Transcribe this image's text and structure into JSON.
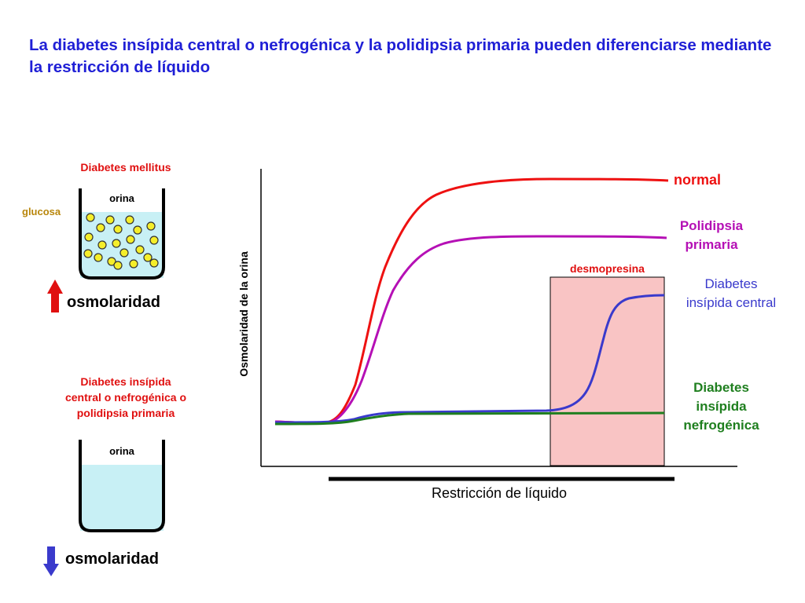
{
  "title": "La diabetes insípida central o nefrogénica y la polidipsia primaria pueden diferenciarse mediante la restricción de líquido",
  "left_top": {
    "condition": "Diabetes mellitus",
    "beaker_label": "orina",
    "solute_label": "glucosa",
    "osmolarity_label": "osmolaridad",
    "osmolarity_direction": "up"
  },
  "left_bottom": {
    "condition_lines": [
      "Diabetes insípida",
      "central o nefrogénica o",
      "polidipsia primaria"
    ],
    "beaker_label": "orina",
    "osmolarity_label": "osmolaridad",
    "osmolarity_direction": "down"
  },
  "graph": {
    "y_axis_label": "Osmolaridad de la orina",
    "x_axis_label": "Restricción de líquido",
    "intervention_label": "desmopresina",
    "curves": {
      "normal": [
        "normal"
      ],
      "primary_polydipsia": [
        "Polidipsia",
        "primaria"
      ],
      "central_di": [
        "Diabetes",
        "insípida central"
      ],
      "nephrogenic_di": [
        "Diabetes",
        "insípida",
        "nefrogénica"
      ]
    }
  },
  "colors": {
    "title": "#1f1fd6",
    "condition_label": "#e01010",
    "glucose_label": "#b8860b",
    "normal": "#ee1111",
    "primary_polydipsia": "#b510b5",
    "central_di": "#3a3acc",
    "nephrogenic_di": "#1f7f1f",
    "urine": "#c8f0f5",
    "glucose_dot": "#f5ee2a",
    "desmopressin_box": "#f9c4c4"
  }
}
